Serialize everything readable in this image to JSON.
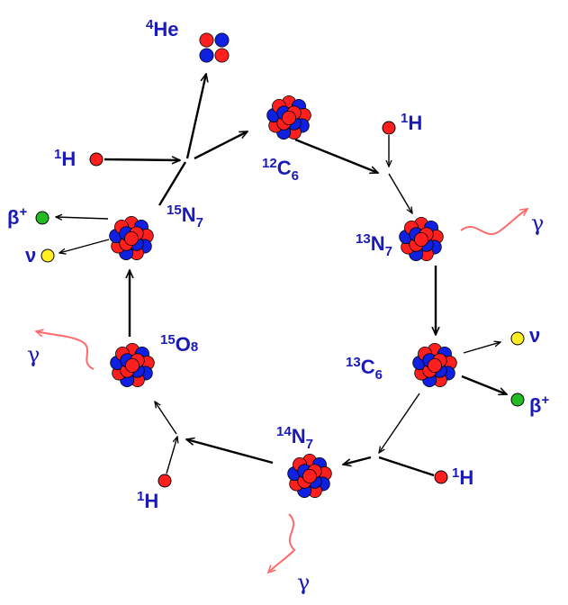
{
  "colors": {
    "proton": "#ff1f1f",
    "neutron": "#1020e0",
    "positron": "#22bb22",
    "neutrino": "#ffee22",
    "gamma_wave": "#ff6a6a",
    "label": "#1a1ab8"
  },
  "nuclei": {
    "he4": {
      "mass": "4",
      "symbol": "He"
    },
    "c12": {
      "mass": "12",
      "symbol": "C",
      "z": "6"
    },
    "n13": {
      "mass": "13",
      "symbol": "N",
      "z": "7"
    },
    "c13": {
      "mass": "13",
      "symbol": "C",
      "z": "6"
    },
    "n14": {
      "mass": "14",
      "symbol": "N",
      "z": "7"
    },
    "o15": {
      "mass": "15",
      "symbol": "O",
      "z": "8"
    },
    "n15": {
      "mass": "15",
      "symbol": "N",
      "z": "7"
    }
  },
  "hydrogen": {
    "mass": "1",
    "symbol": "H"
  },
  "particles": {
    "positron": {
      "symbol": "β",
      "charge": "+"
    },
    "neutrino": {
      "symbol": "ν"
    },
    "gamma": {
      "symbol": "γ"
    }
  }
}
